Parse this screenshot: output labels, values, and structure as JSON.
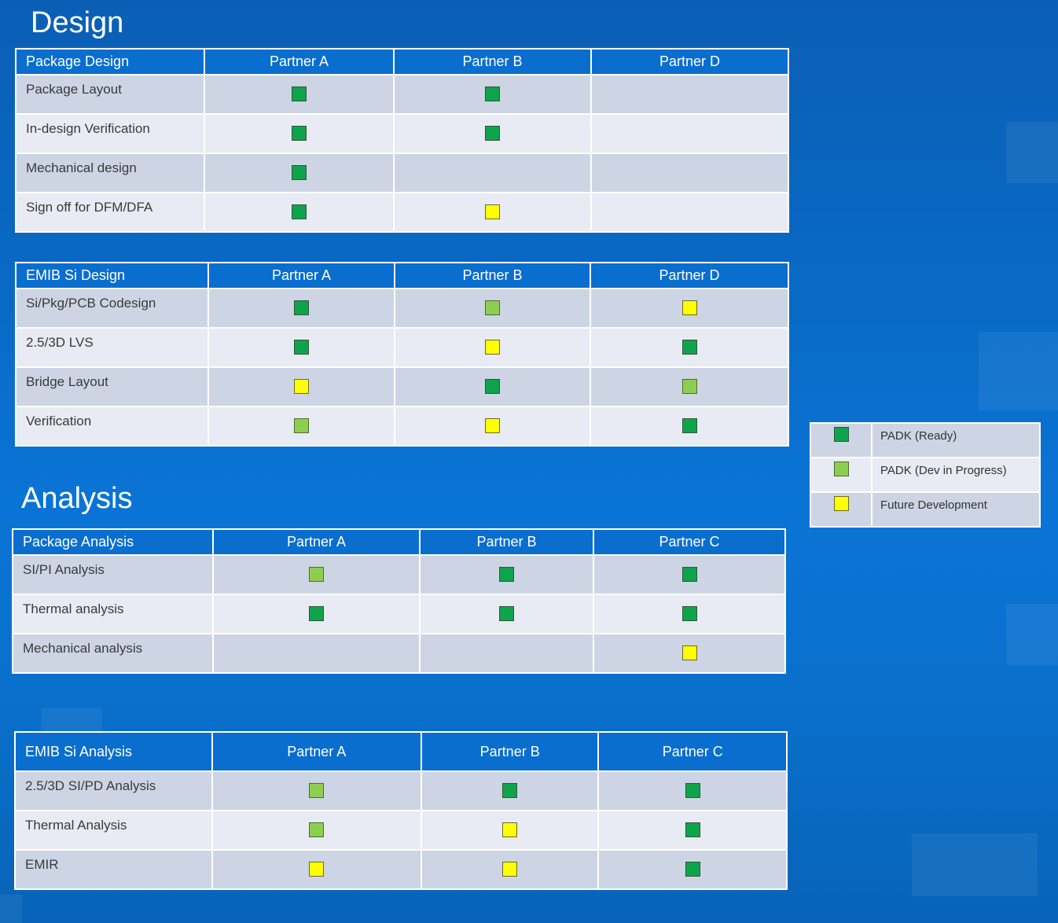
{
  "colors": {
    "background": "#0a6ecf",
    "header": "#0a6ecf",
    "row_odd": "#cdd5e4",
    "row_even": "#e8ebf3",
    "ready": "#0ea44c",
    "dev_in_progress": "#8ece4e",
    "future": "#ffff00"
  },
  "design": {
    "title": "Design",
    "package_design": {
      "headers": [
        "Package Design",
        "Partner A",
        "Partner B",
        "Partner D"
      ],
      "rows": [
        {
          "label": "Package Layout",
          "marks": [
            "ready",
            "ready",
            "empty"
          ]
        },
        {
          "label": "In-design Verification",
          "marks": [
            "ready",
            "ready",
            "empty"
          ]
        },
        {
          "label": "Mechanical design",
          "marks": [
            "ready",
            "empty",
            "empty"
          ]
        },
        {
          "label": "Sign off for DFM/DFA",
          "marks": [
            "ready",
            "future",
            "empty"
          ]
        }
      ]
    },
    "emib_si_design": {
      "headers": [
        "EMIB Si Design",
        "Partner A",
        "Partner B",
        "Partner D"
      ],
      "rows": [
        {
          "label": "Si/Pkg/PCB Codesign",
          "marks": [
            "ready",
            "dev",
            "future"
          ]
        },
        {
          "label": "2.5/3D LVS",
          "marks": [
            "ready",
            "future",
            "ready"
          ]
        },
        {
          "label": "Bridge Layout",
          "marks": [
            "future",
            "ready",
            "dev"
          ]
        },
        {
          "label": "Verification",
          "marks": [
            "dev",
            "future",
            "ready"
          ]
        }
      ]
    }
  },
  "analysis": {
    "title": "Analysis",
    "package_analysis": {
      "headers": [
        "Package Analysis",
        "Partner A",
        "Partner B",
        "Partner C"
      ],
      "rows": [
        {
          "label": "SI/PI Analysis",
          "marks": [
            "dev",
            "ready",
            "ready"
          ]
        },
        {
          "label": "Thermal analysis",
          "marks": [
            "ready",
            "ready",
            "ready"
          ]
        },
        {
          "label": "Mechanical analysis",
          "marks": [
            "empty",
            "empty",
            "future"
          ]
        }
      ]
    },
    "emib_si_analysis": {
      "headers": [
        "EMIB Si Analysis",
        "Partner A",
        "Partner B",
        "Partner C"
      ],
      "rows": [
        {
          "label": "2.5/3D SI/PD Analysis",
          "marks": [
            "dev",
            "ready",
            "ready"
          ]
        },
        {
          "label": "Thermal Analysis",
          "marks": [
            "dev",
            "future",
            "ready"
          ]
        },
        {
          "label": "EMIR",
          "marks": [
            "future",
            "future",
            "ready"
          ]
        }
      ]
    }
  },
  "legend": [
    {
      "mark": "ready",
      "label": "PADK (Ready)"
    },
    {
      "mark": "dev",
      "label": "PADK (Dev in Progress)"
    },
    {
      "mark": "future",
      "label": "Future Development"
    }
  ]
}
